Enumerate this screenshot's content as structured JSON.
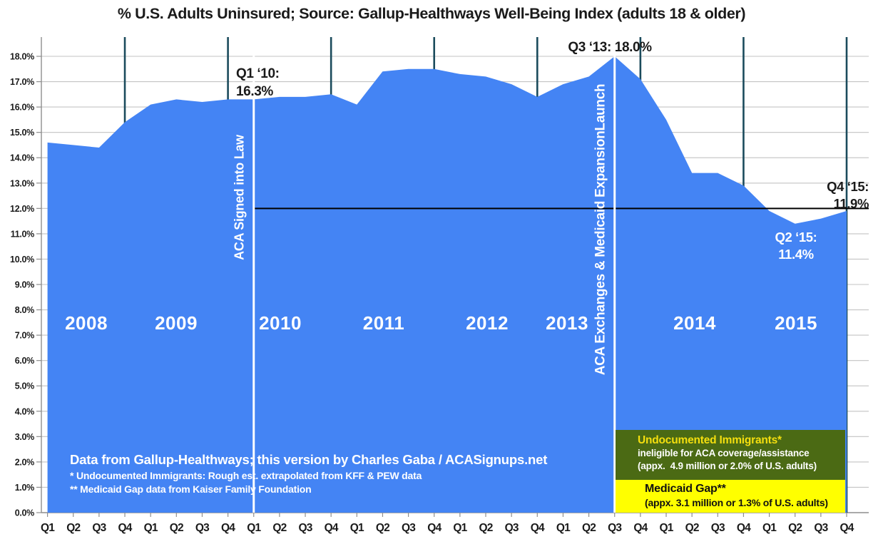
{
  "title": "% U.S. Adults Uninsured; Source: Gallup-Healthways Well-Being Index (adults 18 & older)",
  "chart_data": {
    "type": "area",
    "title": "% U.S. Adults Uninsured; Source: Gallup-Healthways Well-Being Index (adults 18 & older)",
    "x_labels": [
      "Q1",
      "Q2",
      "Q3",
      "Q4",
      "Q1",
      "Q2",
      "Q3",
      "Q4",
      "Q1",
      "Q2",
      "Q3",
      "Q4",
      "Q1",
      "Q2",
      "Q3",
      "Q4",
      "Q1",
      "Q2",
      "Q3",
      "Q4",
      "Q1",
      "Q2",
      "Q3",
      "Q4",
      "Q1",
      "Q2",
      "Q3",
      "Q4",
      "Q1",
      "Q2",
      "Q3",
      "Q4"
    ],
    "years": [
      "2008",
      "2009",
      "2010",
      "2011",
      "2012",
      "2013",
      "2014",
      "2015"
    ],
    "series_name": "% of U.S. adults uninsured",
    "values": [
      14.6,
      14.5,
      14.4,
      15.4,
      16.1,
      16.3,
      16.2,
      16.3,
      16.3,
      16.4,
      16.4,
      16.5,
      16.1,
      17.4,
      17.5,
      17.5,
      17.3,
      17.2,
      16.9,
      16.4,
      16.9,
      17.2,
      18.0,
      17.1,
      15.5,
      13.4,
      13.4,
      12.9,
      11.9,
      11.4,
      11.6,
      11.9
    ],
    "ylim": [
      0,
      18
    ],
    "ytick_step": 1,
    "ytick_format": "N.0%",
    "grid": true,
    "legend": "none",
    "year_divider_quarter_indices": [
      3,
      7,
      11,
      15,
      19,
      23,
      27,
      31
    ],
    "event_lines": [
      {
        "quarter_index": 8,
        "label": "ACA Signed into Law"
      },
      {
        "quarter_index": 22,
        "label": "ACA Exchanges & Medicaid ExpansionLaunch"
      }
    ],
    "reference_line": {
      "value": 12.0,
      "start_quarter_index": 8
    },
    "annotated_points": [
      {
        "quarter": "Q1 2010",
        "value": 16.3
      },
      {
        "quarter": "Q3 2013",
        "value": 18.0
      },
      {
        "quarter": "Q2 2015",
        "value": 11.4
      },
      {
        "quarter": "Q4 2015",
        "value": 11.9
      }
    ]
  },
  "callouts": {
    "q1_10": {
      "line1": "Q1 ‘10:",
      "line2": "16.3%"
    },
    "q3_13": {
      "line1": "Q3 ‘13: 18.0%"
    },
    "q4_15": {
      "line1": "Q4 ‘15:",
      "line2": "11.9%"
    },
    "q2_15": {
      "line1": "Q2 ‘15:",
      "line2": "11.4%"
    }
  },
  "footer": {
    "line1": "Data from Gallup-Healthways; this version by Charles Gaba / ACASignups.net",
    "line2": "* Undocumented Immigrants: Rough est. extrapolated from KFF & PEW data",
    "line3": "** Medicaid Gap data from Kaiser Family Foundation"
  },
  "boxes": {
    "undocumented": {
      "title": "Undocumented Immigrants*",
      "line2": "ineligible for ACA coverage/assistance",
      "line3": "(appx.  4.9 million or 2.0% of U.S. adults)",
      "percent_of_adults": 2.0
    },
    "medicaid_gap": {
      "title": "Medicaid Gap**",
      "line2": "(appx. 3.1 million or 1.3% of U.S. adults)",
      "percent_of_adults": 1.3
    }
  },
  "colors": {
    "area_blue": "#4484F4",
    "year_divider_teal": "#1B4B5C",
    "event_line_white": "#FFFFFF",
    "grid_gray": "#C3C3C3",
    "axis_gray": "#8E8E8E",
    "reference_black": "#000000",
    "text_dark": "#1A1A1A",
    "green_box_bg": "#4B6A14",
    "green_box_title": "#F5DF0E",
    "yellow_box_bg": "#FFFF00",
    "white_text": "#FFFFFF"
  }
}
